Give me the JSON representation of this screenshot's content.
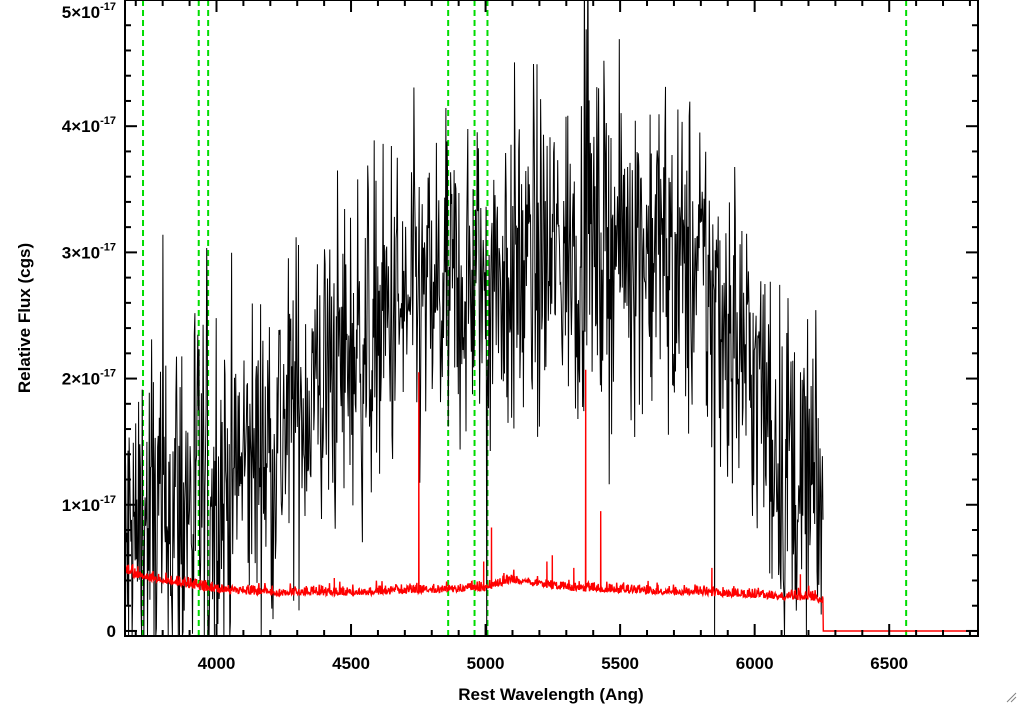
{
  "chart_data": {
    "type": "line",
    "xlabel": "Rest Wavelength (Ang)",
    "ylabel": "Relative Flux (cgs)",
    "xlim": [
      3660,
      6830
    ],
    "ylim": [
      -0.04,
      5.0
    ],
    "y_scale_note": "y values in units of 1e-17",
    "x_ticks": [
      4000,
      4500,
      5000,
      5500,
      6000,
      6500
    ],
    "y_ticks": [
      {
        "value": 0,
        "mantissa": "0",
        "exponent": ""
      },
      {
        "value": 1,
        "mantissa": "1×10",
        "exponent": "-17"
      },
      {
        "value": 2,
        "mantissa": "2×10",
        "exponent": "-17"
      },
      {
        "value": 3,
        "mantissa": "3×10",
        "exponent": "-17"
      },
      {
        "value": 4,
        "mantissa": "4×10",
        "exponent": "-17"
      },
      {
        "value": 5,
        "mantissa": "5×10",
        "exponent": "-17"
      }
    ],
    "reference_lines": {
      "color": "#00dd00",
      "style": "dashed",
      "x": [
        3727,
        3934,
        3969,
        4861,
        4959,
        5007,
        6563
      ]
    },
    "series": [
      {
        "color": "#000000",
        "style": "noisy",
        "continuum": {
          "x": [
            3660,
            3800,
            3900,
            4000,
            4200,
            4400,
            4600,
            4800,
            5000,
            5200,
            5400,
            5600,
            5800,
            5900,
            6000,
            6100,
            6200,
            6250
          ],
          "y": [
            0.6,
            0.9,
            1.0,
            1.1,
            1.5,
            2.0,
            2.4,
            2.6,
            2.8,
            2.9,
            3.05,
            3.1,
            2.8,
            2.5,
            2.0,
            1.4,
            1.1,
            1.0
          ]
        },
        "noise_scale": [
          1.0,
          0.75
        ],
        "x_end": 6255
      },
      {
        "color": "#ff0000",
        "style": "noisy",
        "continuum": {
          "x": [
            3660,
            3700,
            3800,
            3900,
            4000,
            4200,
            4500,
            4800,
            5000,
            5100,
            5300,
            5500,
            5800,
            6000,
            6200,
            6255
          ],
          "y": [
            0.45,
            0.42,
            0.38,
            0.34,
            0.3,
            0.28,
            0.28,
            0.3,
            0.32,
            0.38,
            0.32,
            0.3,
            0.28,
            0.26,
            0.24,
            0.22
          ]
        },
        "noise_scale": [
          0.05
        ],
        "spikes": [
          {
            "x": 4752,
            "y": 2.05
          },
          {
            "x": 5022,
            "y": 0.82
          },
          {
            "x": 5372,
            "y": 2.07
          },
          {
            "x": 5428,
            "y": 0.95
          },
          {
            "x": 4438,
            "y": 0.42
          },
          {
            "x": 4993,
            "y": 0.55
          },
          {
            "x": 5228,
            "y": 0.55
          },
          {
            "x": 5248,
            "y": 0.6
          },
          {
            "x": 5328,
            "y": 0.5
          },
          {
            "x": 5841,
            "y": 0.5
          },
          {
            "x": 6170,
            "y": 0.45
          }
        ],
        "tail": {
          "x": [
            6255,
            6830
          ],
          "y": 0.0
        }
      }
    ]
  }
}
